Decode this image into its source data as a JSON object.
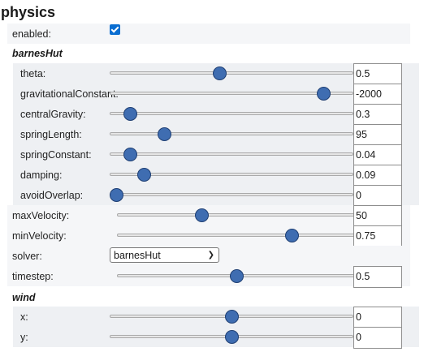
{
  "title": "physics",
  "enabled": {
    "label": "enabled:",
    "checked": true
  },
  "barnes_hut_title": "barnesHut",
  "barnes_hut": [
    {
      "key": "theta",
      "label": "theta:",
      "value": "0.5",
      "fraction": 0.45
    },
    {
      "key": "gravitationalConstant",
      "label": "gravitationalConstant:",
      "value": "-2000",
      "fraction": 0.9
    },
    {
      "key": "centralGravity",
      "label": "centralGravity:",
      "value": "0.3",
      "fraction": 0.06
    },
    {
      "key": "springLength",
      "label": "springLength:",
      "value": "95",
      "fraction": 0.21
    },
    {
      "key": "springConstant",
      "label": "springConstant:",
      "value": "0.04",
      "fraction": 0.06
    },
    {
      "key": "damping",
      "label": "damping:",
      "value": "0.09",
      "fraction": 0.12
    },
    {
      "key": "avoidOverlap",
      "label": "avoidOverlap:",
      "value": "0",
      "fraction": 0.0
    }
  ],
  "max_velocity": {
    "label": "maxVelocity:",
    "value": "50",
    "fraction": 0.34
  },
  "min_velocity": {
    "label": "minVelocity:",
    "value": "0.75",
    "fraction": 0.73
  },
  "solver": {
    "label": "solver:",
    "selected": "barnesHut"
  },
  "timestep": {
    "label": "timestep:",
    "value": "0.5",
    "fraction": 0.49
  },
  "wind_title": "wind",
  "wind": [
    {
      "key": "x",
      "label": "x:",
      "value": "0",
      "fraction": 0.5
    },
    {
      "key": "y",
      "label": "y:",
      "value": "0",
      "fraction": 0.5
    }
  ],
  "colors": {
    "thumb": "#3f6db1",
    "checkbox": "#0a6ed1"
  }
}
